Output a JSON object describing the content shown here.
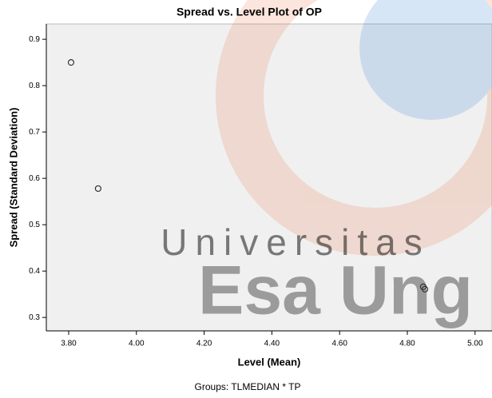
{
  "chart_data": {
    "type": "scatter",
    "title": "Spread vs. Level Plot of OP",
    "x_label": "Level (Mean)",
    "y_label": "Spread (Standard Deviation)",
    "annotation": "Groups: TLMEDIAN * TP",
    "watermark": [
      "Universitas",
      "Esa Ung"
    ],
    "x": [
      3.807,
      3.887,
      4.847,
      4.852
    ],
    "values": [
      0.85,
      0.578,
      0.366,
      0.361
    ],
    "color": "#333333",
    "xlim": [
      3.734,
      5.05
    ],
    "ylim": [
      0.271,
      0.933
    ],
    "xticks": [
      {
        "value": 3.8,
        "label": "3.80"
      },
      {
        "value": 4.0,
        "label": "4.00"
      },
      {
        "value": 4.2,
        "label": "4.20"
      },
      {
        "value": 4.4,
        "label": "4.40"
      },
      {
        "value": 4.6,
        "label": "4.60"
      },
      {
        "value": 4.8,
        "label": "4.80"
      },
      {
        "value": 5.0,
        "label": "5.00"
      }
    ],
    "yticks": [
      0.3,
      0.4,
      0.5,
      0.6,
      0.7,
      0.8,
      0.9
    ]
  }
}
